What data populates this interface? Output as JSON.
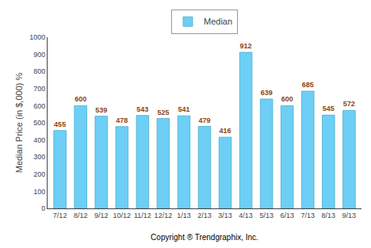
{
  "chart_data": {
    "type": "bar",
    "categories": [
      "7/12",
      "8/12",
      "9/12",
      "10/12",
      "11/12",
      "12/12",
      "1/13",
      "2/13",
      "3/13",
      "4/13",
      "5/13",
      "6/13",
      "7/13",
      "8/13",
      "9/13"
    ],
    "series": [
      {
        "name": "Median",
        "color": "#6dcff6",
        "values": [
          455,
          600,
          539,
          478,
          543,
          525,
          541,
          479,
          416,
          912,
          639,
          600,
          685,
          545,
          572
        ]
      }
    ],
    "ylabel": "Median Price (in $,000) %",
    "xlabel": "Copyright ® Trendgraphix, Inc.",
    "ylim": [
      0,
      1000
    ],
    "yticks": [
      0,
      100,
      200,
      300,
      400,
      500,
      600,
      700,
      800,
      900,
      1000
    ],
    "data_labels": true,
    "grid": false,
    "legend": "top"
  }
}
